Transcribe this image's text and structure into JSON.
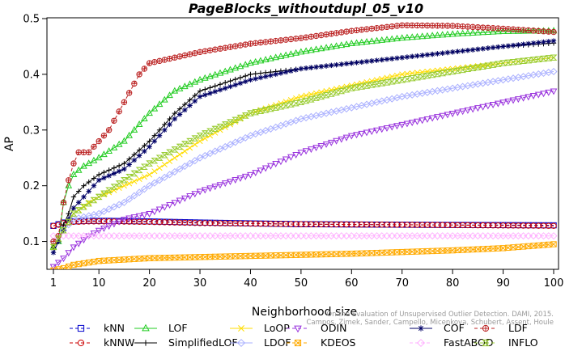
{
  "chart_data": {
    "type": "line",
    "title": "PageBlocks_withoutdupl_05_v10",
    "xlabel": "Neighborhood size",
    "ylabel": "AP",
    "xlim": [
      1,
      100
    ],
    "ylim": [
      0.05,
      0.5
    ],
    "xticks": [
      1,
      10,
      20,
      30,
      40,
      50,
      60,
      70,
      80,
      90,
      100
    ],
    "yticks": [
      0.1,
      0.2,
      0.3,
      0.4,
      0.5
    ],
    "xtick_labels": [
      "1",
      "10",
      "20",
      "30",
      "40",
      "50",
      "60",
      "70",
      "80",
      "90",
      "100"
    ],
    "ytick_labels": [
      "0.1",
      "0.2",
      "0.3",
      "0.4",
      "0.5"
    ],
    "grid": false,
    "legend_position": "bottom",
    "watermark": [
      "On the Evaluation of Unsupervised Outlier Detection. DAMI, 2015.",
      "Campos, Zimek, Sander, Campello, Micenkova, Schubert, Assent, Houle"
    ],
    "series": [
      {
        "name": "kNN",
        "color": "#0000cc",
        "marker": "square",
        "line": "dash",
        "x": [
          1,
          2,
          3,
          5,
          8,
          12,
          20,
          30,
          50,
          70,
          100
        ],
        "y": [
          0.128,
          0.131,
          0.134,
          0.136,
          0.137,
          0.137,
          0.136,
          0.134,
          0.131,
          0.13,
          0.129
        ]
      },
      {
        "name": "kNNW",
        "color": "#cc0000",
        "marker": "circle",
        "line": "dash",
        "x": [
          1,
          2,
          3,
          5,
          8,
          12,
          20,
          30,
          50,
          70,
          100
        ],
        "y": [
          0.128,
          0.13,
          0.133,
          0.135,
          0.136,
          0.136,
          0.135,
          0.133,
          0.131,
          0.13,
          0.128
        ]
      },
      {
        "name": "LOF",
        "color": "#22cc22",
        "marker": "triangle",
        "line": "solid",
        "x": [
          1,
          2,
          3,
          4,
          5,
          7,
          10,
          15,
          20,
          25,
          30,
          40,
          50,
          60,
          70,
          80,
          90,
          100
        ],
        "y": [
          0.09,
          0.1,
          0.17,
          0.2,
          0.22,
          0.235,
          0.25,
          0.28,
          0.33,
          0.37,
          0.39,
          0.42,
          0.44,
          0.455,
          0.465,
          0.472,
          0.477,
          0.478
        ]
      },
      {
        "name": "SimplifiedLOF",
        "color": "#000000",
        "marker": "plus",
        "line": "solid",
        "x": [
          1,
          2,
          3,
          4,
          5,
          7,
          10,
          15,
          20,
          25,
          30,
          40,
          50,
          60,
          70,
          80,
          90,
          100
        ],
        "y": [
          0.09,
          0.1,
          0.13,
          0.15,
          0.18,
          0.2,
          0.22,
          0.24,
          0.28,
          0.33,
          0.37,
          0.4,
          0.41,
          0.42,
          0.43,
          0.44,
          0.45,
          0.456
        ]
      },
      {
        "name": "LoOP",
        "color": "#ffdd00",
        "marker": "x",
        "line": "solid",
        "x": [
          1,
          3,
          5,
          8,
          10,
          15,
          20,
          25,
          30,
          40,
          50,
          60,
          70,
          80,
          90,
          100
        ],
        "y": [
          0.09,
          0.12,
          0.15,
          0.17,
          0.18,
          0.2,
          0.22,
          0.25,
          0.28,
          0.33,
          0.36,
          0.38,
          0.4,
          0.41,
          0.42,
          0.43
        ]
      },
      {
        "name": "LDOF",
        "color": "#aab0ff",
        "marker": "diamond",
        "line": "solid",
        "x": [
          1,
          3,
          5,
          10,
          15,
          20,
          30,
          40,
          50,
          60,
          70,
          80,
          90,
          100
        ],
        "y": [
          0.1,
          0.12,
          0.14,
          0.15,
          0.17,
          0.2,
          0.25,
          0.29,
          0.32,
          0.34,
          0.36,
          0.375,
          0.39,
          0.405
        ]
      },
      {
        "name": "ODIN",
        "color": "#9933dd",
        "marker": "triangle-down",
        "line": "dash",
        "x": [
          1,
          3,
          5,
          8,
          10,
          15,
          20,
          25,
          30,
          40,
          50,
          60,
          70,
          80,
          90,
          100
        ],
        "y": [
          0.055,
          0.07,
          0.09,
          0.11,
          0.12,
          0.14,
          0.15,
          0.17,
          0.19,
          0.22,
          0.26,
          0.29,
          0.31,
          0.33,
          0.35,
          0.37
        ]
      },
      {
        "name": "KDEOS",
        "color": "#ffaa00",
        "marker": "square-x",
        "line": "dash",
        "x": [
          1,
          3,
          5,
          10,
          20,
          30,
          40,
          50,
          60,
          70,
          80,
          90,
          100
        ],
        "y": [
          0.048,
          0.052,
          0.058,
          0.065,
          0.07,
          0.072,
          0.074,
          0.076,
          0.078,
          0.081,
          0.084,
          0.088,
          0.095
        ]
      },
      {
        "name": "COF",
        "color": "#000066",
        "marker": "asterisk",
        "line": "solid",
        "x": [
          1,
          2,
          3,
          4,
          5,
          7,
          10,
          15,
          20,
          25,
          30,
          40,
          50,
          60,
          70,
          80,
          90,
          100
        ],
        "y": [
          0.08,
          0.1,
          0.12,
          0.14,
          0.16,
          0.18,
          0.21,
          0.23,
          0.27,
          0.32,
          0.36,
          0.39,
          0.41,
          0.42,
          0.43,
          0.44,
          0.45,
          0.46
        ]
      },
      {
        "name": "FastABOD",
        "color": "#ffb0ff",
        "marker": "diamond",
        "line": "dash",
        "x": [
          1,
          3,
          5,
          10,
          20,
          30,
          50,
          70,
          100
        ],
        "y": [
          0.11,
          0.11,
          0.11,
          0.11,
          0.11,
          0.11,
          0.11,
          0.11,
          0.11
        ]
      },
      {
        "name": "LDF",
        "color": "#bb2222",
        "marker": "circle-plus",
        "line": "dash",
        "x": [
          1,
          2,
          3,
          4,
          5,
          6,
          8,
          10,
          12,
          15,
          18,
          20,
          25,
          30,
          40,
          50,
          60,
          70,
          80,
          90,
          100
        ],
        "y": [
          0.1,
          0.11,
          0.17,
          0.21,
          0.24,
          0.26,
          0.26,
          0.28,
          0.3,
          0.35,
          0.4,
          0.42,
          0.43,
          0.44,
          0.455,
          0.465,
          0.478,
          0.488,
          0.487,
          0.482,
          0.476
        ]
      },
      {
        "name": "INFLO",
        "color": "#99cc33",
        "marker": "hourglass",
        "line": "dash",
        "x": [
          1,
          3,
          5,
          10,
          15,
          20,
          30,
          40,
          50,
          60,
          70,
          80,
          90,
          100
        ],
        "y": [
          0.09,
          0.12,
          0.15,
          0.18,
          0.21,
          0.24,
          0.29,
          0.33,
          0.35,
          0.375,
          0.39,
          0.405,
          0.42,
          0.43
        ]
      }
    ]
  }
}
